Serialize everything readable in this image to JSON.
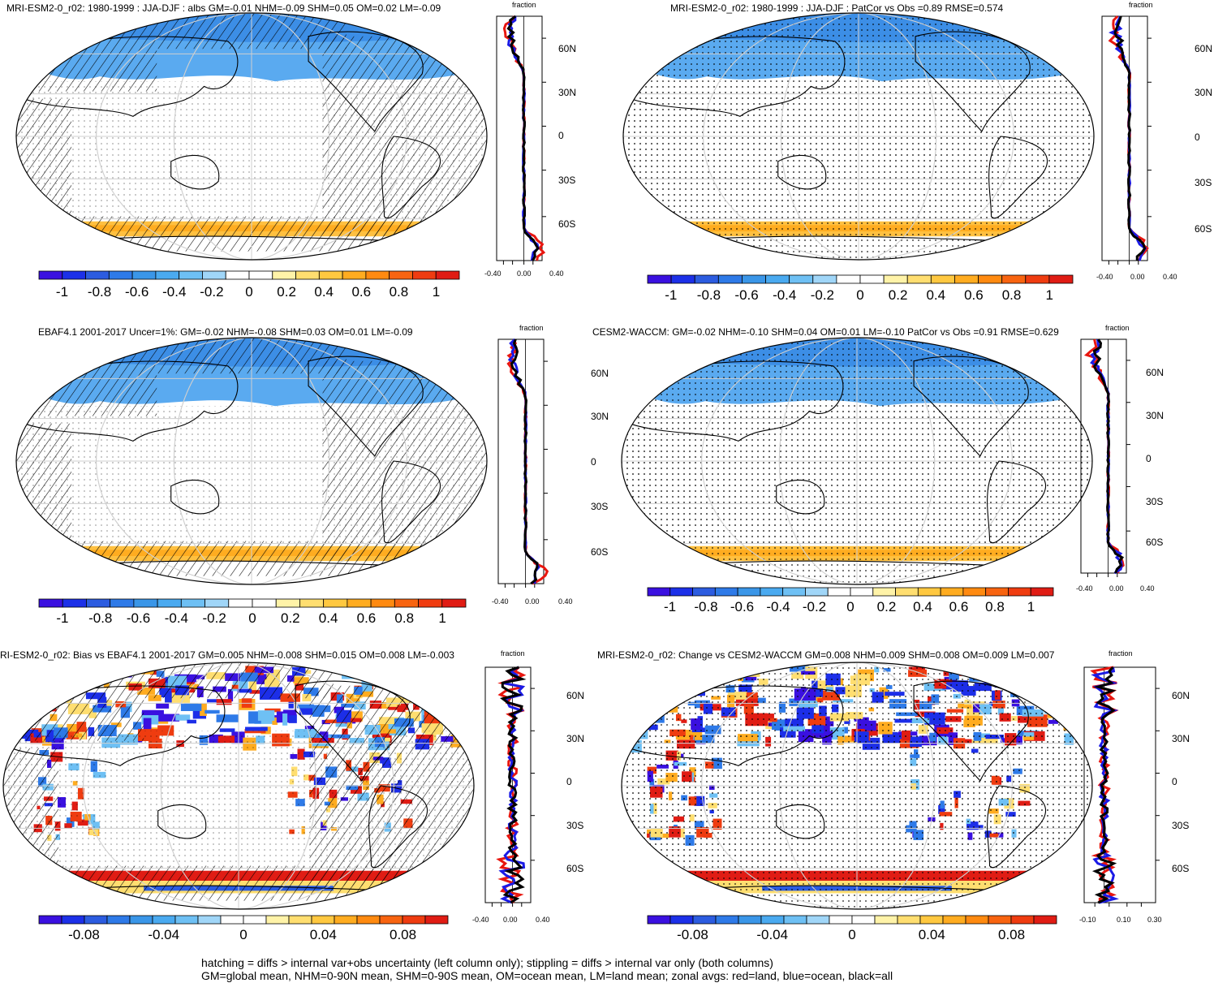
{
  "panels": [
    {
      "id": "p1",
      "title": "MRI-ESM2-0_r02: 1980-1999 : JJA-DJF : albs GM=-0.01 NHM=-0.09 SHM=0.05 OM=0.02 LM=-0.09",
      "hatching": true,
      "zonal_x_ticks": [
        "-0.40",
        "0.00",
        "0.40"
      ],
      "colorbar_labels": [
        "-1",
        "-0.8",
        "-0.6",
        "-0.4",
        "-0.2",
        "0",
        "0.2",
        "0.4",
        "0.6",
        "0.8",
        "1"
      ]
    },
    {
      "id": "p2",
      "title": "MRI-ESM2-0_r02: 1980-1999 : JJA-DJF : PatCor vs Obs =0.89 RMSE=0.574",
      "hatching": false,
      "zonal_x_ticks": [
        "-0.40",
        "0.00",
        "0.40"
      ],
      "colorbar_labels": [
        "-1",
        "-0.8",
        "-0.6",
        "-0.4",
        "-0.2",
        "0",
        "0.2",
        "0.4",
        "0.6",
        "0.8",
        "1"
      ]
    },
    {
      "id": "p3",
      "title": "EBAF4.1 2001-2017 Uncer=1%: GM=-0.02 NHM=-0.08 SHM=0.03 OM=0.01 LM=-0.09",
      "hatching": true,
      "zonal_x_ticks": [
        "-0.40",
        "0.00",
        "0.40"
      ],
      "colorbar_labels": [
        "-1",
        "-0.8",
        "-0.6",
        "-0.4",
        "-0.2",
        "0",
        "0.2",
        "0.4",
        "0.6",
        "0.8",
        "1"
      ]
    },
    {
      "id": "p4",
      "title": "CESM2-WACCM: GM=-0.02 NHM=-0.10 SHM=0.04 OM=0.01 LM=-0.10 PatCor vs Obs =0.91 RMSE=0.629",
      "hatching": false,
      "zonal_x_ticks": [
        "-0.40",
        "0.00",
        "0.40"
      ],
      "colorbar_labels": [
        "-1",
        "-0.8",
        "-0.6",
        "-0.4",
        "-0.2",
        "0",
        "0.2",
        "0.4",
        "0.6",
        "0.8",
        "1"
      ]
    },
    {
      "id": "p5",
      "title": "RI-ESM2-0_r02: Bias vs EBAF4.1 2001-2017 GM=0.005 NHM=-0.008 SHM=0.015 OM=0.008 LM=-0.003",
      "hatching": true,
      "zonal_x_ticks": [
        "-0.40",
        "0.00",
        "0.40"
      ],
      "colorbar_labels": [
        "-0.08",
        "-0.04",
        "0",
        "0.04",
        "0.08"
      ]
    },
    {
      "id": "p6",
      "title": "MRI-ESM2-0_r02: Change vs CESM2-WACCM GM=0.008 NHM=0.009 SHM=0.008 OM=0.009 LM=0.007",
      "hatching": false,
      "zonal_x_ticks": [
        "-0.10",
        "0.10",
        "0.30"
      ],
      "colorbar_labels": [
        "-0.08",
        "-0.04",
        "0",
        "0.04",
        "0.08"
      ]
    }
  ],
  "zonal_axis": {
    "title": "fraction",
    "lat_labels": [
      "60N",
      "30N",
      "0",
      "30S",
      "60S"
    ]
  },
  "zonal_legend": {
    "land": "red",
    "ocean": "blue",
    "all": "black"
  },
  "colors": {
    "land": "#e8160f",
    "ocean": "#1a1ae6",
    "all": "#000000",
    "scale": [
      "#3a10e0",
      "#1c30e8",
      "#2c5ce0",
      "#2e7ae8",
      "#3a96e8",
      "#4aaaf0",
      "#6ec0f4",
      "#a0d6f8",
      "#ffffff",
      "#ffffff",
      "#fff3a8",
      "#ffde70",
      "#ffc840",
      "#ffac20",
      "#ff8a10",
      "#f86410",
      "#ef3c10",
      "#e01c14"
    ]
  },
  "footer": {
    "line1": "hatching = diffs > internal var+obs uncertainty (left column only); stippling = diffs > internal var only (both columns)",
    "line2": "GM=global mean, NHM=0-90N mean, SHM=0-90S mean, OM=ocean mean, LM=land mean; zonal avgs: red=land, blue=ocean, black=all"
  }
}
